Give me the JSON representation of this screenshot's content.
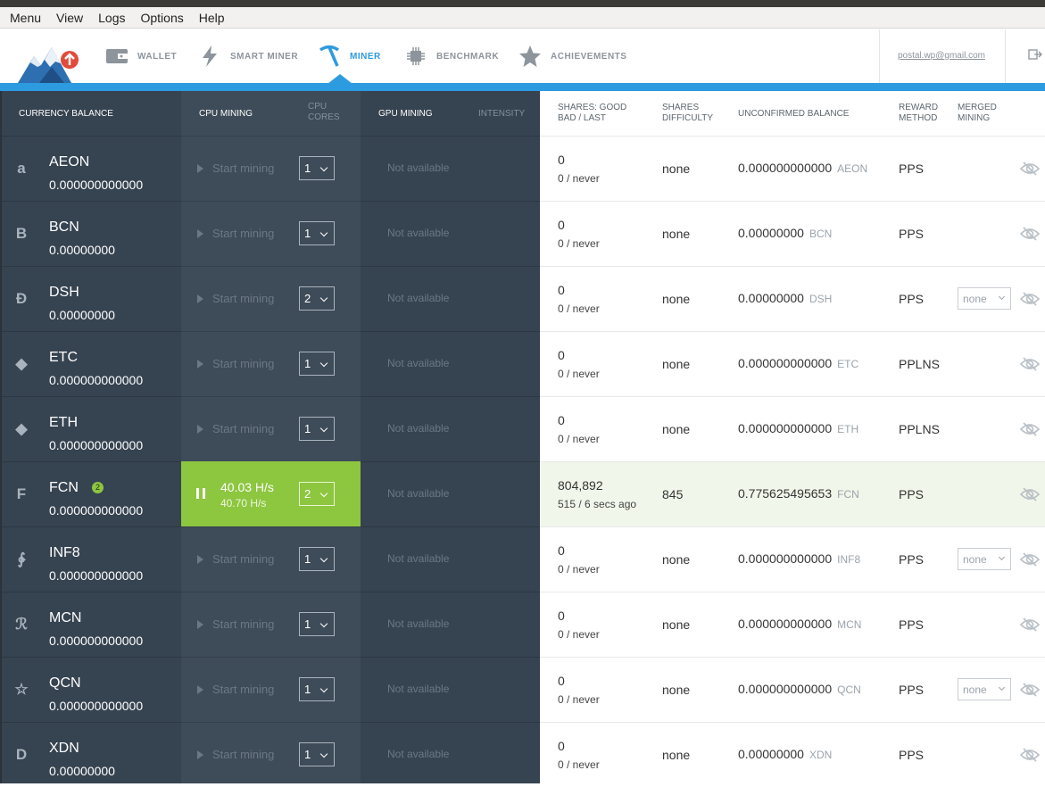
{
  "menubar": [
    "Menu",
    "View",
    "Logs",
    "Options",
    "Help"
  ],
  "nav": [
    {
      "label": "WALLET",
      "icon": "wallet-icon",
      "active": false
    },
    {
      "label": "SMART MINER",
      "icon": "lightning-icon",
      "active": false
    },
    {
      "label": "MINER",
      "icon": "pickaxe-icon",
      "active": true
    },
    {
      "label": "BENCHMARK",
      "icon": "chip-icon",
      "active": false
    },
    {
      "label": "ACHIEVEMENTS",
      "icon": "star-icon",
      "active": false
    }
  ],
  "account": {
    "email": "postal.wp@gmail.com"
  },
  "headers": {
    "balance": "CURRENCY BALANCE",
    "cpu_mining": "CPU MINING",
    "cpu_cores": "CPU CORES",
    "gpu_mining": "GPU MINING",
    "intensity": "INTENSITY",
    "shares": "SHARES: GOOD BAD / LAST",
    "difficulty": "SHARES DIFFICULTY",
    "unconfirmed": "UNCONFIRMED BALANCE",
    "reward": "REWARD METHOD",
    "merged": "MERGED MINING"
  },
  "rows": [
    {
      "code": "AEON",
      "glyph": "a",
      "balance": "0.000000000000",
      "mining": false,
      "start_label": "Start mining",
      "cores": "1",
      "gpu": "Not available",
      "shares_good": "0",
      "shares_bad_last": "0 / never",
      "difficulty": "none",
      "unconfirmed": "0.000000000000",
      "reward": "PPS",
      "merged": null
    },
    {
      "code": "BCN",
      "glyph": "B",
      "balance": "0.00000000",
      "mining": false,
      "start_label": "Start mining",
      "cores": "1",
      "gpu": "Not available",
      "shares_good": "0",
      "shares_bad_last": "0 / never",
      "difficulty": "none",
      "unconfirmed": "0.00000000",
      "reward": "PPS",
      "merged": null
    },
    {
      "code": "DSH",
      "glyph": "Đ",
      "balance": "0.00000000",
      "mining": false,
      "start_label": "Start mining",
      "cores": "2",
      "gpu": "Not available",
      "shares_good": "0",
      "shares_bad_last": "0 / never",
      "difficulty": "none",
      "unconfirmed": "0.00000000",
      "reward": "PPS",
      "merged": "none"
    },
    {
      "code": "ETC",
      "glyph": "◆",
      "balance": "0.000000000000",
      "mining": false,
      "start_label": "Start mining",
      "cores": "1",
      "gpu": "Not available",
      "shares_good": "0",
      "shares_bad_last": "0 / never",
      "difficulty": "none",
      "unconfirmed": "0.000000000000",
      "reward": "PPLNS",
      "merged": null
    },
    {
      "code": "ETH",
      "glyph": "◆",
      "balance": "0.000000000000",
      "mining": false,
      "start_label": "Start mining",
      "cores": "1",
      "gpu": "Not available",
      "shares_good": "0",
      "shares_bad_last": "0 / never",
      "difficulty": "none",
      "unconfirmed": "0.000000000000",
      "reward": "PPLNS",
      "merged": null
    },
    {
      "code": "FCN",
      "glyph": "F",
      "badge": "2",
      "balance": "0.000000000000",
      "mining": true,
      "hashrate": "40.03 H/s",
      "hashrate_avg": "40.70 H/s",
      "cores": "2",
      "gpu": "Not available",
      "shares_good": "804,892",
      "shares_bad_last": "515 / 6 secs ago",
      "difficulty": "845",
      "unconfirmed": "0.775625495653",
      "reward": "PPS",
      "merged": null
    },
    {
      "code": "INF8",
      "glyph": "∲",
      "balance": "0.000000000000",
      "mining": false,
      "start_label": "Start mining",
      "cores": "1",
      "gpu": "Not available",
      "shares_good": "0",
      "shares_bad_last": "0 / never",
      "difficulty": "none",
      "unconfirmed": "0.000000000000",
      "reward": "PPS",
      "merged": "none"
    },
    {
      "code": "MCN",
      "glyph": "ℛ",
      "balance": "0.000000000000",
      "mining": false,
      "start_label": "Start mining",
      "cores": "1",
      "gpu": "Not available",
      "shares_good": "0",
      "shares_bad_last": "0 / never",
      "difficulty": "none",
      "unconfirmed": "0.000000000000",
      "reward": "PPS",
      "merged": null
    },
    {
      "code": "QCN",
      "glyph": "☆",
      "balance": "0.000000000000",
      "mining": false,
      "start_label": "Start mining",
      "cores": "1",
      "gpu": "Not available",
      "shares_good": "0",
      "shares_bad_last": "0 / never",
      "difficulty": "none",
      "unconfirmed": "0.000000000000",
      "reward": "PPS",
      "merged": "none"
    },
    {
      "code": "XDN",
      "glyph": "D",
      "balance": "0.00000000",
      "mining": false,
      "start_label": "Start mining",
      "cores": "1",
      "gpu": "Not available",
      "shares_good": "0",
      "shares_bad_last": "0 / never",
      "difficulty": "none",
      "unconfirmed": "0.00000000",
      "reward": "PPS",
      "merged": null
    }
  ],
  "colors": {
    "accent": "#2d9be0",
    "active_green": "#8dc63f",
    "dark_panel": "#364350"
  }
}
